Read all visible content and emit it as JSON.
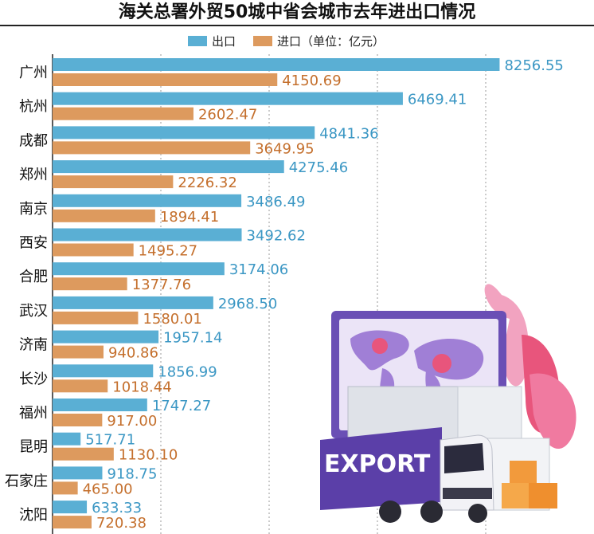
{
  "colors": {
    "export": "#5aafd4",
    "import": "#dd9a5e",
    "export_label": "#3b97c4",
    "import_label": "#c46f2c",
    "title": "#111111",
    "grid": "#9a9a9a",
    "axis": "#222222"
  },
  "illustration": {
    "name": "export-truck-illustration",
    "truck_text": "EXPORT"
  },
  "chart_data": {
    "type": "bar",
    "orientation": "horizontal",
    "title": "海关总署外贸50城中省会城市去年进出口情况",
    "legend_export": "出口",
    "legend_import": "进口（单位：亿元）",
    "xlim": [
      0,
      10000
    ],
    "grid": true,
    "categories": [
      "广州",
      "杭州",
      "成都",
      "郑州",
      "南京",
      "西安",
      "合肥",
      "武汉",
      "济南",
      "长沙",
      "福州",
      "昆明",
      "石家庄",
      "沈阳"
    ],
    "series": [
      {
        "name": "出口",
        "values": [
          8256.55,
          6469.41,
          4841.36,
          4275.46,
          3486.49,
          3492.62,
          3174.06,
          2968.5,
          1957.14,
          1856.99,
          1747.27,
          517.71,
          918.75,
          633.33
        ],
        "labels": [
          "8256.55",
          "6469.41",
          "4841.36",
          "4275.46",
          "3486.49",
          "3492.62",
          "3174.06",
          "2968.50",
          "1957.14",
          "1856.99",
          "1747.27",
          "517.71",
          "918.75",
          "633.33"
        ]
      },
      {
        "name": "进口",
        "values": [
          4150.69,
          2602.47,
          3649.95,
          2226.32,
          1894.41,
          1495.27,
          1377.76,
          1580.01,
          940.86,
          1018.44,
          917.0,
          1130.1,
          465.0,
          720.38
        ],
        "labels": [
          "4150.69",
          "2602.47",
          "3649.95",
          "2226.32",
          "1894.41",
          "1495.27",
          "1377.76",
          "1580.01",
          "940.86",
          "1018.44",
          "917.00",
          "1130.10",
          "465.00",
          "720.38"
        ]
      }
    ]
  }
}
